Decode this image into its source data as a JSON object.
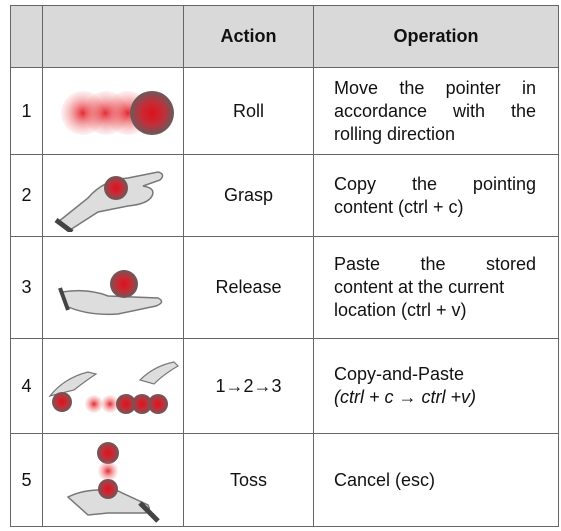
{
  "table": {
    "header": [
      "",
      "",
      "Action",
      "Operation"
    ],
    "rows": [
      {
        "no": "1",
        "action": "Roll",
        "operation": [
          "Move the pointer in",
          "accordance with the",
          "rolling direction"
        ]
      },
      {
        "no": "2",
        "action": "Grasp",
        "operation": [
          "Copy the pointing",
          "content (ctrl + c)"
        ]
      },
      {
        "no": "3",
        "action": "Release",
        "operation": [
          "Paste the stored",
          "content at the current",
          "location (ctrl + v)"
        ]
      },
      {
        "no": "4",
        "action": "1→2→3",
        "operation": [
          "Copy-and-Paste",
          "(ctrl + c  → ctrl +v)"
        ]
      },
      {
        "no": "5",
        "action": "Toss",
        "operation": [
          "Cancel (esc)"
        ]
      }
    ]
  }
}
